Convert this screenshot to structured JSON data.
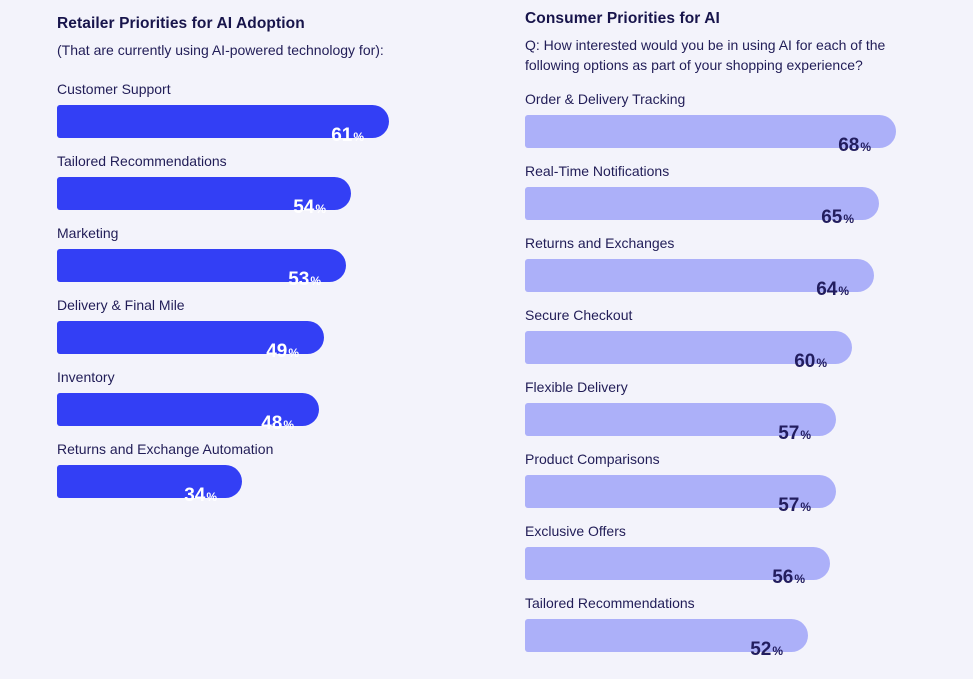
{
  "page": {
    "background_color": "#F3F3FB",
    "text_color": "#1E1B52"
  },
  "chart_data": [
    {
      "type": "bar",
      "orientation": "horizontal",
      "title": "Retailer Priorities for AI Adoption",
      "subtitle": "(That are currently using AI-powered technology for):",
      "categories": [
        "Customer Support",
        "Tailored Recommendations",
        "Marketing",
        "Delivery & Final Mile",
        "Inventory",
        "Returns and Exchange Automation"
      ],
      "values": [
        61,
        54,
        53,
        49,
        48,
        34
      ],
      "unit": "%",
      "xlim": [
        0,
        100
      ],
      "grid": false,
      "legend": false,
      "bar_color": "#333FF5",
      "value_label_color": "#FFFFFF",
      "value_labels_inside_bars": true
    },
    {
      "type": "bar",
      "orientation": "horizontal",
      "title": "Consumer Priorities for AI",
      "subtitle_lines": [
        "Q: How interested would you be in using AI for each of the",
        "following options as part of your shopping experience?"
      ],
      "categories": [
        "Order & Delivery Tracking",
        "Real-Time Notifications",
        "Returns and Exchanges",
        "Secure Checkout",
        "Flexible Delivery",
        "Product Comparisons",
        "Exclusive Offers",
        "Tailored Recommendations"
      ],
      "values": [
        68,
        65,
        64,
        60,
        57,
        57,
        56,
        52
      ],
      "unit": "%",
      "xlim": [
        0,
        100
      ],
      "grid": false,
      "legend": false,
      "bar_color": "#ACB0F9",
      "value_label_color": "#221D5E",
      "value_labels_inside_bars": true
    }
  ]
}
